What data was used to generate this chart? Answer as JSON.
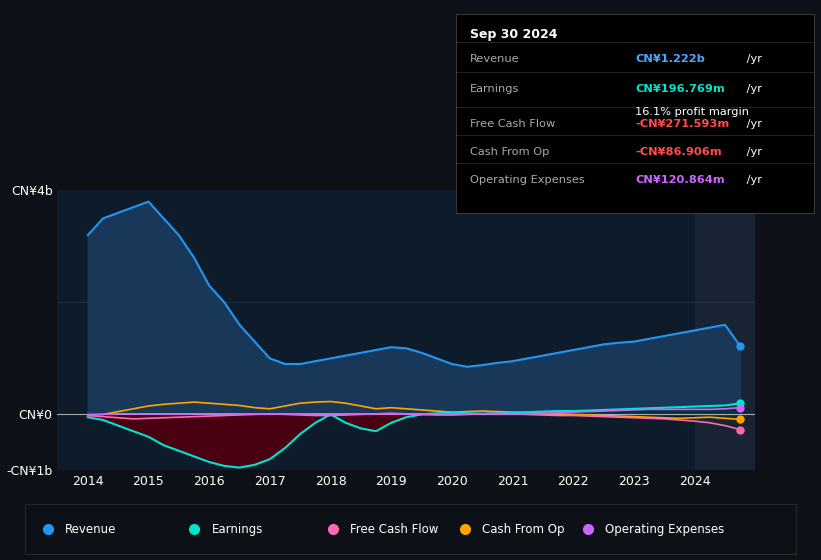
{
  "bg_color": "#0d1117",
  "chart_bg": "#0d1b2a",
  "title": "Sep 30 2024",
  "years": [
    2014,
    2014.25,
    2014.5,
    2014.75,
    2015,
    2015.25,
    2015.5,
    2015.75,
    2016,
    2016.25,
    2016.5,
    2016.75,
    2017,
    2017.25,
    2017.5,
    2017.75,
    2018,
    2018.25,
    2018.5,
    2018.75,
    2019,
    2019.25,
    2019.5,
    2019.75,
    2020,
    2020.25,
    2020.5,
    2020.75,
    2021,
    2021.25,
    2021.5,
    2021.75,
    2022,
    2022.25,
    2022.5,
    2022.75,
    2023,
    2023.25,
    2023.5,
    2023.75,
    2024,
    2024.25,
    2024.5,
    2024.75
  ],
  "revenue": [
    3.2,
    3.5,
    3.6,
    3.7,
    3.8,
    3.5,
    3.2,
    2.8,
    2.3,
    2.0,
    1.6,
    1.3,
    1.0,
    0.9,
    0.9,
    0.95,
    1.0,
    1.05,
    1.1,
    1.15,
    1.2,
    1.18,
    1.1,
    1.0,
    0.9,
    0.85,
    0.88,
    0.92,
    0.95,
    1.0,
    1.05,
    1.1,
    1.15,
    1.2,
    1.25,
    1.28,
    1.3,
    1.35,
    1.4,
    1.45,
    1.5,
    1.55,
    1.6,
    1.222
  ],
  "earnings": [
    -0.05,
    -0.1,
    -0.2,
    -0.3,
    -0.4,
    -0.55,
    -0.65,
    -0.75,
    -0.85,
    -0.92,
    -0.95,
    -0.9,
    -0.8,
    -0.6,
    -0.35,
    -0.15,
    0.0,
    -0.15,
    -0.25,
    -0.3,
    -0.15,
    -0.05,
    0.0,
    0.02,
    0.03,
    0.02,
    0.01,
    0.02,
    0.03,
    0.04,
    0.05,
    0.06,
    0.06,
    0.07,
    0.08,
    0.09,
    0.1,
    0.11,
    0.12,
    0.13,
    0.14,
    0.15,
    0.16,
    0.197
  ],
  "free_cash_flow": [
    -0.02,
    -0.04,
    -0.06,
    -0.08,
    -0.07,
    -0.06,
    -0.05,
    -0.04,
    -0.03,
    -0.02,
    -0.01,
    0.0,
    0.01,
    0.0,
    -0.01,
    -0.02,
    -0.02,
    -0.01,
    0.0,
    0.01,
    0.02,
    0.01,
    0.0,
    -0.01,
    -0.01,
    0.0,
    0.01,
    0.02,
    0.01,
    0.0,
    -0.01,
    -0.02,
    -0.02,
    -0.03,
    -0.04,
    -0.05,
    -0.06,
    -0.07,
    -0.08,
    -0.1,
    -0.12,
    -0.15,
    -0.2,
    -0.272
  ],
  "cash_from_op": [
    -0.01,
    0.0,
    0.05,
    0.1,
    0.15,
    0.18,
    0.2,
    0.22,
    0.2,
    0.18,
    0.16,
    0.12,
    0.1,
    0.15,
    0.2,
    0.22,
    0.23,
    0.2,
    0.15,
    0.1,
    0.12,
    0.1,
    0.08,
    0.06,
    0.04,
    0.05,
    0.06,
    0.05,
    0.04,
    0.03,
    0.02,
    0.01,
    0.0,
    -0.01,
    -0.02,
    -0.03,
    -0.04,
    -0.05,
    -0.06,
    -0.07,
    -0.06,
    -0.05,
    -0.07,
    -0.087
  ],
  "operating_expenses": [
    0.0,
    0.0,
    0.01,
    0.01,
    0.01,
    0.01,
    0.01,
    0.01,
    0.01,
    0.01,
    0.01,
    0.01,
    0.01,
    0.01,
    0.01,
    0.01,
    0.01,
    0.01,
    0.01,
    0.01,
    0.01,
    0.01,
    0.01,
    0.01,
    0.01,
    0.01,
    0.01,
    0.01,
    0.01,
    0.01,
    0.02,
    0.03,
    0.04,
    0.05,
    0.06,
    0.07,
    0.08,
    0.09,
    0.09,
    0.09,
    0.09,
    0.09,
    0.1,
    0.121
  ],
  "revenue_color": "#2196f3",
  "earnings_color": "#00e5cc",
  "free_cash_flow_color": "#ff69b4",
  "cash_from_op_color": "#ffa500",
  "operating_expenses_color": "#cc66ff",
  "revenue_fill_color": "#1a3a5c",
  "earnings_neg_fill": "#4d0010",
  "earnings_pos_fill": "#003333",
  "ylabel_top": "CN¥4b",
  "ylabel_zero": "CN¥0",
  "ylabel_bottom": "-CN¥1b",
  "ytop": 4.0,
  "yzero": 0.0,
  "ybottom": -1.0,
  "shaded_xstart": 2024.0,
  "xmin": 2013.5,
  "xmax": 2025.0,
  "xtick_years": [
    2014,
    2015,
    2016,
    2017,
    2018,
    2019,
    2020,
    2021,
    2022,
    2023,
    2024
  ],
  "legend_items": [
    "Revenue",
    "Earnings",
    "Free Cash Flow",
    "Cash From Op",
    "Operating Expenses"
  ],
  "legend_colors": [
    "#2196f3",
    "#00e5cc",
    "#ff69b4",
    "#ffa500",
    "#cc66ff"
  ],
  "box_title": "Sep 30 2024",
  "box_rows": [
    {
      "label": "Revenue",
      "value": "CN¥1.222b",
      "suffix": " /yr",
      "value_color": "#4da6ff",
      "extra": null
    },
    {
      "label": "Earnings",
      "value": "CN¥196.769m",
      "suffix": " /yr",
      "value_color": "#00e5cc",
      "extra": "16.1% profit margin"
    },
    {
      "label": "Free Cash Flow",
      "value": "-CN¥271.593m",
      "suffix": " /yr",
      "value_color": "#ff4d4d",
      "extra": null
    },
    {
      "label": "Cash From Op",
      "value": "-CN¥86.906m",
      "suffix": " /yr",
      "value_color": "#ff4d4d",
      "extra": null
    },
    {
      "label": "Operating Expenses",
      "value": "CN¥120.864m",
      "suffix": " /yr",
      "value_color": "#cc66ff",
      "extra": null
    }
  ]
}
